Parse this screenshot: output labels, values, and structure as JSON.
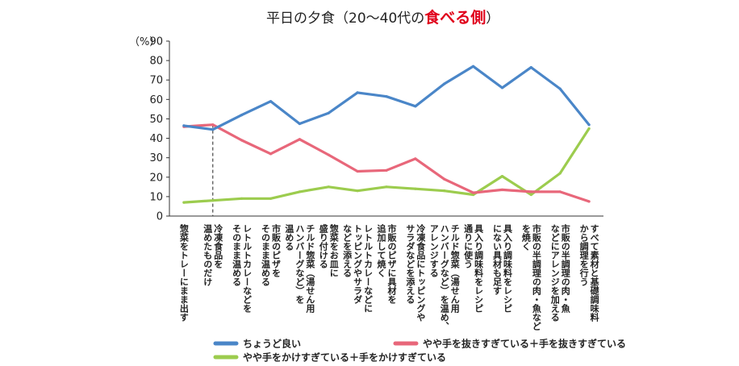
{
  "chart_data": {
    "type": "line",
    "title": "平日の夕食（20〜40代の",
    "title_accent": "食べる側",
    "title_end": "）",
    "y_unit": "（%）",
    "ylim": [
      0,
      90
    ],
    "yticks": [
      0,
      10,
      20,
      30,
      40,
      50,
      60,
      70,
      80,
      90
    ],
    "grid": false,
    "legend_position": "bottom",
    "categories": [
      [
        "惣菜をトレーにまま出す"
      ],
      [
        "冷凍食品を",
        "温めたものだけ"
      ],
      [
        "レトルトカレーなどを",
        "そのまま温める"
      ],
      [
        "市販のピザを",
        "そのまま温める"
      ],
      [
        "チルド惣菜（湯せん用",
        "ハンバーグなど）を",
        "温める"
      ],
      [
        "惣菜をお皿に",
        "盛り付ける"
      ],
      [
        "レトルトカレーなどに",
        "トッピングやサラダ",
        "などを添える"
      ],
      [
        "市販のピザに具材を",
        "追加して焼く"
      ],
      [
        "冷凍食品にトッピングや",
        "サラダなどを添える"
      ],
      [
        "チルド惣菜（湯せん用",
        "ハンバーグなど）を温め、",
        "アレンジする"
      ],
      [
        "具入り調味料をレシピ",
        "通りに使う"
      ],
      [
        "具入り調味料をレシピ",
        "にない具材も足す"
      ],
      [
        "市販の半調理の肉・魚など",
        "を焼く"
      ],
      [
        "市販の半調理の肉・魚",
        "などにアレンジを加える"
      ],
      [
        "すべて素材と基礎調味料",
        "から調理を行う"
      ]
    ],
    "series": [
      {
        "name": "ちょうど良い",
        "color": "#4a86c8",
        "values": [
          46.5,
          44.5,
          52,
          59,
          47.5,
          53,
          63.5,
          61.5,
          56.5,
          68,
          77,
          66,
          76.5,
          65.5,
          47
        ]
      },
      {
        "name": "やや手を抜きすぎている＋手を抜きすぎている",
        "color": "#e8677a",
        "values": [
          46,
          47,
          39,
          32,
          39.5,
          31.5,
          23,
          23.5,
          29.5,
          19,
          12,
          13.5,
          12.5,
          12.5,
          7.5
        ]
      },
      {
        "name": "やや手をかけすぎている＋手をかけすぎている",
        "color": "#9ccc4e",
        "values": [
          7,
          8,
          9,
          9,
          12.5,
          15,
          13,
          15,
          14,
          13,
          11,
          20.5,
          11,
          22,
          45
        ]
      }
    ],
    "marker_line_after_category": 1
  }
}
